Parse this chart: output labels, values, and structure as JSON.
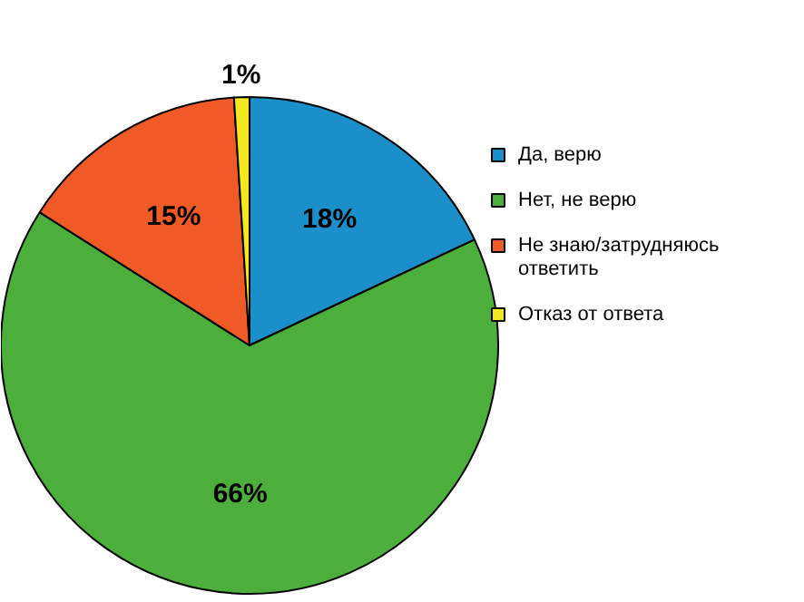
{
  "chart_data": {
    "type": "pie",
    "categories": [
      "Да, верю",
      "Нет, не верю",
      "Не знаю/затрудняюсь ответить",
      "Отказ от ответа"
    ],
    "values": [
      18,
      66,
      15,
      1
    ],
    "colors": [
      "#1a8fc9",
      "#4cae3b",
      "#ef5a26",
      "#f3e71f"
    ],
    "value_labels": [
      "18%",
      "66%",
      "15%",
      "1%"
    ],
    "legend": "right"
  }
}
